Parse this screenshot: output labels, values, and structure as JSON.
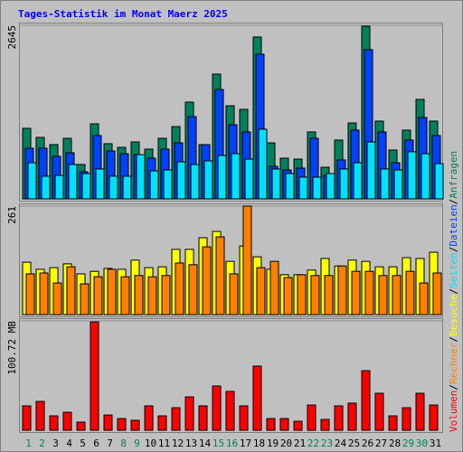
{
  "chart_data": [
    {
      "type": "bar",
      "title": "Tages-Statistik im Monat Maerz 2025",
      "legend_separator": "/",
      "ylim": [
        0,
        2645
      ],
      "yticks": [
        2645
      ],
      "grid": true,
      "series": [
        {
          "name": "Anfragen",
          "color": "#00805c",
          "values": [
            1075,
            937,
            827,
            923,
            524,
            1144,
            841,
            785,
            868,
            758,
            923,
            1102,
            1474,
            827,
            1901,
            1419,
            1364,
            2467,
            854,
            620,
            606,
            1020,
            482,
            896,
            1157,
            2632,
            1185,
            744,
            1047,
            1516,
            1185
          ]
        },
        {
          "name": "Dateien",
          "color": "#0040ff",
          "values": [
            772,
            772,
            648,
            703,
            413,
            965,
            730,
            689,
            675,
            620,
            758,
            854,
            1254,
            827,
            1667,
            1130,
            1020,
            2205,
            496,
            441,
            469,
            923,
            358,
            593,
            1047,
            2274,
            1020,
            551,
            896,
            1240,
            965
          ]
        },
        {
          "name": "Seiten",
          "color": "#00e0ff",
          "values": [
            551,
            345,
            358,
            524,
            386,
            455,
            345,
            345,
            675,
            427,
            441,
            565,
            524,
            579,
            661,
            689,
            606,
            1061,
            455,
            386,
            331,
            331,
            386,
            455,
            551,
            868,
            455,
            441,
            717,
            689,
            537
          ]
        }
      ]
    },
    {
      "type": "bar",
      "ylim": [
        0,
        261
      ],
      "yticks": [
        261
      ],
      "grid": true,
      "series": [
        {
          "name": "Besuche",
          "color": "#ffff00",
          "values": [
            126,
            109,
            113,
            122,
            98,
            104,
            111,
            109,
            131,
            113,
            115,
            157,
            157,
            185,
            200,
            128,
            165,
            139,
            109,
            96,
            96,
            107,
            135,
            117,
            131,
            128,
            115,
            115,
            137,
            135,
            150
          ]
        },
        {
          "name": "Rechner",
          "color": "#ff8000",
          "values": [
            98,
            100,
            76,
            115,
            74,
            91,
            109,
            91,
            94,
            91,
            94,
            124,
            120,
            163,
            187,
            98,
            261,
            113,
            128,
            89,
            96,
            94,
            94,
            117,
            104,
            104,
            94,
            94,
            104,
            76,
            100
          ]
        }
      ]
    },
    {
      "type": "bar",
      "ylim": [
        0,
        100.72
      ],
      "yticks": [
        {
          "value": 100.72,
          "label": "100.72 MB"
        }
      ],
      "grid": true,
      "categories": [
        "1",
        "2",
        "3",
        "4",
        "5",
        "6",
        "7",
        "8",
        "9",
        "10",
        "11",
        "12",
        "13",
        "14",
        "15",
        "16",
        "17",
        "18",
        "19",
        "20",
        "21",
        "22",
        "23",
        "24",
        "25",
        "26",
        "27",
        "28",
        "29",
        "30",
        "31"
      ],
      "category_colors": [
        "#00805c",
        "#00805c",
        "#000000",
        "#000000",
        "#000000",
        "#000000",
        "#000000",
        "#00805c",
        "#00805c",
        "#000000",
        "#000000",
        "#000000",
        "#000000",
        "#000000",
        "#00805c",
        "#00805c",
        "#000000",
        "#000000",
        "#000000",
        "#000000",
        "#000000",
        "#00805c",
        "#00805c",
        "#000000",
        "#000000",
        "#000000",
        "#000000",
        "#000000",
        "#00805c",
        "#00805c",
        "#000000"
      ],
      "series": [
        {
          "name": "Volumen",
          "color": "#ff0000",
          "values": [
            22.5,
            26.6,
            13.3,
            16.6,
            7.5,
            99.8,
            14.1,
            10.8,
            9.2,
            22.5,
            13.3,
            20.8,
            30.8,
            22.5,
            40.8,
            35.8,
            22.5,
            59.1,
            10.8,
            10.8,
            8.3,
            23.3,
            10,
            22.5,
            25,
            54.9,
            34.1,
            13.3,
            20.8,
            34.1,
            23.3
          ]
        }
      ]
    }
  ]
}
